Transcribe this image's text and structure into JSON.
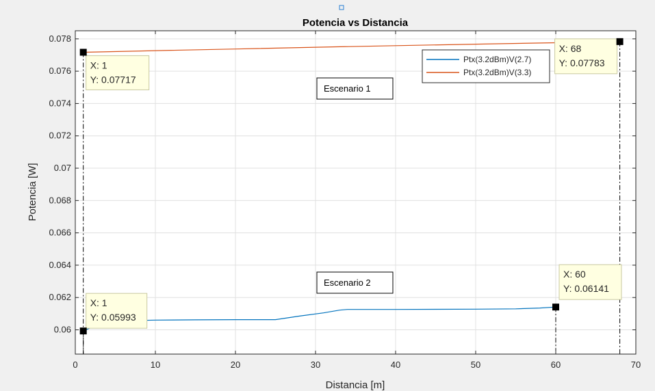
{
  "chart_data": {
    "type": "line",
    "title": "Potencia vs Distancia",
    "xlabel": "Distancia [m]",
    "ylabel": "Potencia [W]",
    "xlim": [
      0,
      70
    ],
    "ylim": [
      0.0585,
      0.0785
    ],
    "xticks": [
      0,
      10,
      20,
      30,
      40,
      50,
      60,
      70
    ],
    "yticks": [
      0.06,
      0.062,
      0.064,
      0.066,
      0.068,
      0.07,
      0.072,
      0.074,
      0.076,
      0.078
    ],
    "ytick_labels": [
      "0.06",
      "0.062",
      "0.064",
      "0.066",
      "0.068",
      "0.07",
      "0.072",
      "0.074",
      "0.076",
      "0.078"
    ],
    "grid": true,
    "legend_position": "top-right",
    "series": [
      {
        "name": "Ptx(3.2dBm)V(2.7)",
        "color": "#0072bd",
        "x": [
          1,
          2,
          3,
          4,
          5,
          6,
          8,
          10,
          15,
          20,
          25,
          28,
          31,
          33,
          34,
          40,
          45,
          50,
          55,
          58,
          60
        ],
        "y": [
          0.05993,
          0.06015,
          0.06035,
          0.06045,
          0.0605,
          0.06055,
          0.06058,
          0.0606,
          0.06062,
          0.06063,
          0.06063,
          0.06085,
          0.06105,
          0.06122,
          0.06126,
          0.06126,
          0.06127,
          0.06128,
          0.0613,
          0.06135,
          0.06141
        ]
      },
      {
        "name": "Ptx(3.2dBm)V(3.3)",
        "color": "#d95319",
        "x": [
          1,
          10,
          20,
          30,
          40,
          50,
          60,
          68
        ],
        "y": [
          0.07717,
          0.07727,
          0.07737,
          0.07748,
          0.07758,
          0.07767,
          0.07776,
          0.07783
        ]
      }
    ],
    "datatips": [
      {
        "x": 1,
        "y": 0.07717,
        "x_text": "X: 1",
        "y_text": "Y: 0.07717"
      },
      {
        "x": 68,
        "y": 0.07783,
        "x_text": "X: 68",
        "y_text": "Y: 0.07783"
      },
      {
        "x": 1,
        "y": 0.05993,
        "x_text": "X: 1",
        "y_text": "Y: 0.05993"
      },
      {
        "x": 60,
        "y": 0.06141,
        "x_text": "X: 60",
        "y_text": "Y: 0.06141"
      }
    ],
    "annotations": [
      {
        "text": "Escenario 1"
      },
      {
        "text": "Escenario 2"
      }
    ]
  }
}
